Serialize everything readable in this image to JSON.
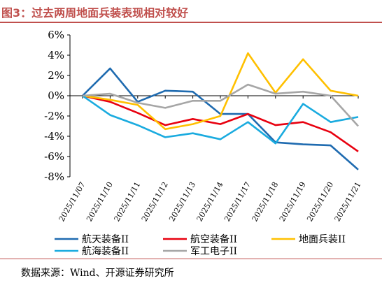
{
  "header": {
    "title": "图3：过去两周地面兵装表现相对较好"
  },
  "footer": {
    "source": "数据来源：Wind、开源证券研究所"
  },
  "colors": {
    "accent": "#c0504d"
  },
  "chart_data": {
    "type": "line",
    "title": "",
    "xlabel": "",
    "ylabel": "",
    "ylim": [
      -8,
      6
    ],
    "yticks": [
      "-8%",
      "-6%",
      "-4%",
      "-2%",
      "0%",
      "2%",
      "4%",
      "6%"
    ],
    "grid": false,
    "legend_position": "bottom",
    "categories": [
      "2025/11/07",
      "2025/11/10",
      "2025/11/11",
      "2025/11/12",
      "2025/11/13",
      "2025/11/14",
      "2025/11/17",
      "2025/11/18",
      "2025/11/19",
      "2025/11/20",
      "2025/11/21"
    ],
    "series": [
      {
        "name": "航天装备II",
        "color": "#1f6bb0",
        "values": [
          0,
          2.7,
          -0.6,
          0.5,
          0.4,
          -1.8,
          -1.8,
          -4.6,
          -4.8,
          -4.9,
          -7.3
        ]
      },
      {
        "name": "航空装备II",
        "color": "#e8000f",
        "values": [
          0,
          -0.6,
          -1.7,
          -2.9,
          -2.3,
          -2.8,
          -1.8,
          -2.9,
          -2.6,
          -3.6,
          -5.5
        ]
      },
      {
        "name": "地面兵装II",
        "color": "#ffc000",
        "values": [
          0,
          -0.4,
          -0.9,
          -3.3,
          -2.8,
          -2.0,
          4.2,
          0.3,
          3.6,
          0.5,
          0.0
        ]
      },
      {
        "name": "航海装备II",
        "color": "#1aabdf",
        "values": [
          0,
          -1.9,
          -2.9,
          -4.1,
          -3.7,
          -4.3,
          -2.6,
          -4.7,
          -0.8,
          -2.6,
          -2.1
        ]
      },
      {
        "name": "军工电子II",
        "color": "#a6a6a6",
        "values": [
          0,
          0.2,
          -0.7,
          -1.2,
          -0.5,
          -0.5,
          1.1,
          0.2,
          0.4,
          0.0,
          -3.0
        ]
      }
    ]
  }
}
